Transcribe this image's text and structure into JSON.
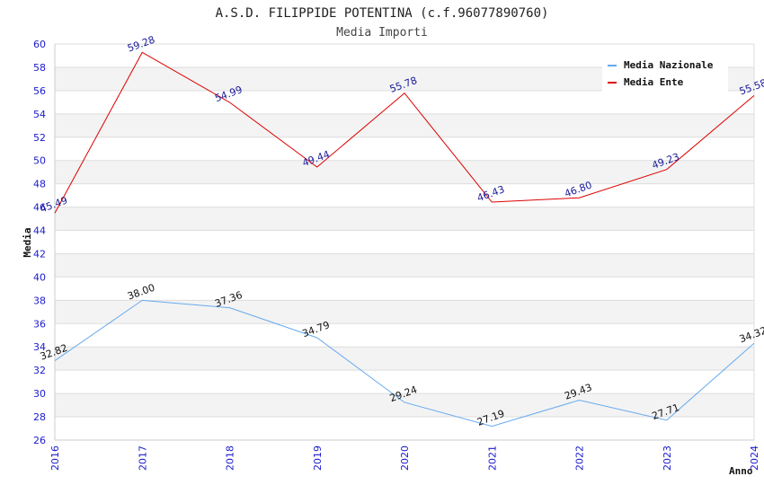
{
  "chart_data": {
    "type": "line",
    "title": "A.S.D. FILIPPIDE POTENTINA (c.f.96077890760)",
    "subtitle": "Media Importi",
    "xlabel": "Anno",
    "ylabel": "Media",
    "x": [
      "2016",
      "2017",
      "2018",
      "2019",
      "2020",
      "2021",
      "2022",
      "2023",
      "2024"
    ],
    "ylim": [
      26,
      60
    ],
    "yticks": [
      26,
      28,
      30,
      32,
      34,
      36,
      38,
      40,
      42,
      44,
      46,
      48,
      50,
      52,
      54,
      56,
      58,
      60
    ],
    "grid": true,
    "legend_position": "top-right",
    "series": [
      {
        "name": "Media Nazionale",
        "color": "#66aaee",
        "values": [
          32.82,
          38.0,
          37.36,
          34.79,
          29.24,
          27.19,
          29.43,
          27.71,
          34.32
        ],
        "labels": [
          "32.82",
          "38.00",
          "37.36",
          "34.79",
          "29.24",
          "27.19",
          "29.43",
          "27.71",
          "34.32"
        ]
      },
      {
        "name": "Media Ente",
        "color": "#dd0000",
        "values": [
          45.49,
          59.28,
          54.99,
          49.44,
          55.78,
          46.43,
          46.8,
          49.23,
          55.58
        ],
        "labels": [
          "45.49",
          "59.28",
          "54.99",
          "49.44",
          "55.78",
          "46.43",
          "46.80",
          "49.23",
          "55.58"
        ]
      }
    ]
  }
}
